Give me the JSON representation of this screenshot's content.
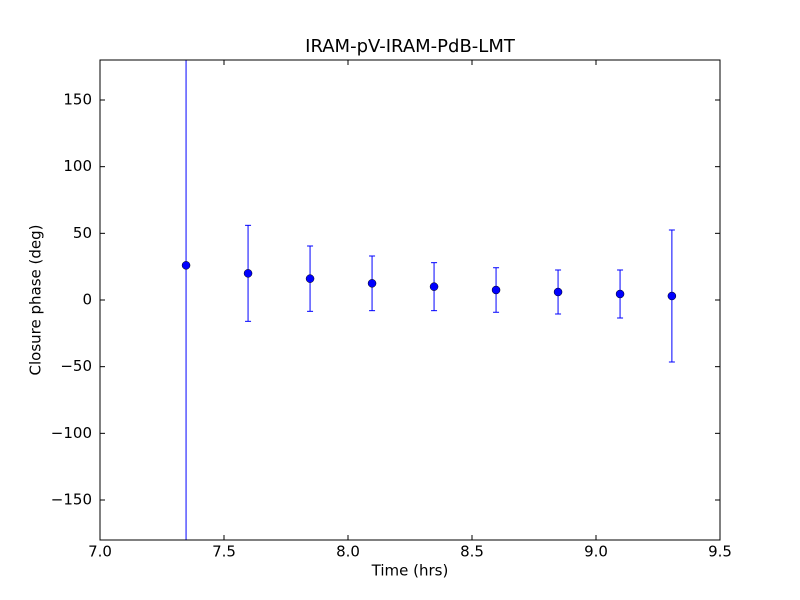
{
  "chart_data": {
    "type": "errorbar",
    "title": "IRAM-pV-IRAM-PdB-LMT",
    "x_label": "Time (hrs)",
    "y_label": "Closure phase (deg)",
    "x": [
      7.347,
      7.597,
      7.847,
      8.097,
      8.347,
      8.597,
      8.847,
      9.097,
      9.306
    ],
    "values": [
      26,
      20,
      16,
      12.5,
      10,
      7.5,
      6,
      4.5,
      3
    ],
    "errors": [
      250,
      36,
      24.5,
      20.5,
      18,
      16.7,
      16.5,
      18,
      49.5
    ],
    "color": "#0000ff",
    "xlim": [
      7.0,
      9.5
    ],
    "xticks": [
      {
        "value": 7,
        "label": "7.0"
      },
      7.5,
      {
        "value": 8,
        "label": "8.0"
      },
      8.5,
      {
        "value": 9,
        "label": "9.0"
      },
      9.5
    ],
    "ylim": [
      -180,
      180
    ],
    "yticks": [
      {
        "value": -150,
        "label": "−150"
      },
      {
        "value": -100,
        "label": "−100"
      },
      {
        "value": -50,
        "label": "−50"
      },
      0,
      50,
      100,
      150
    ],
    "grid": false
  }
}
